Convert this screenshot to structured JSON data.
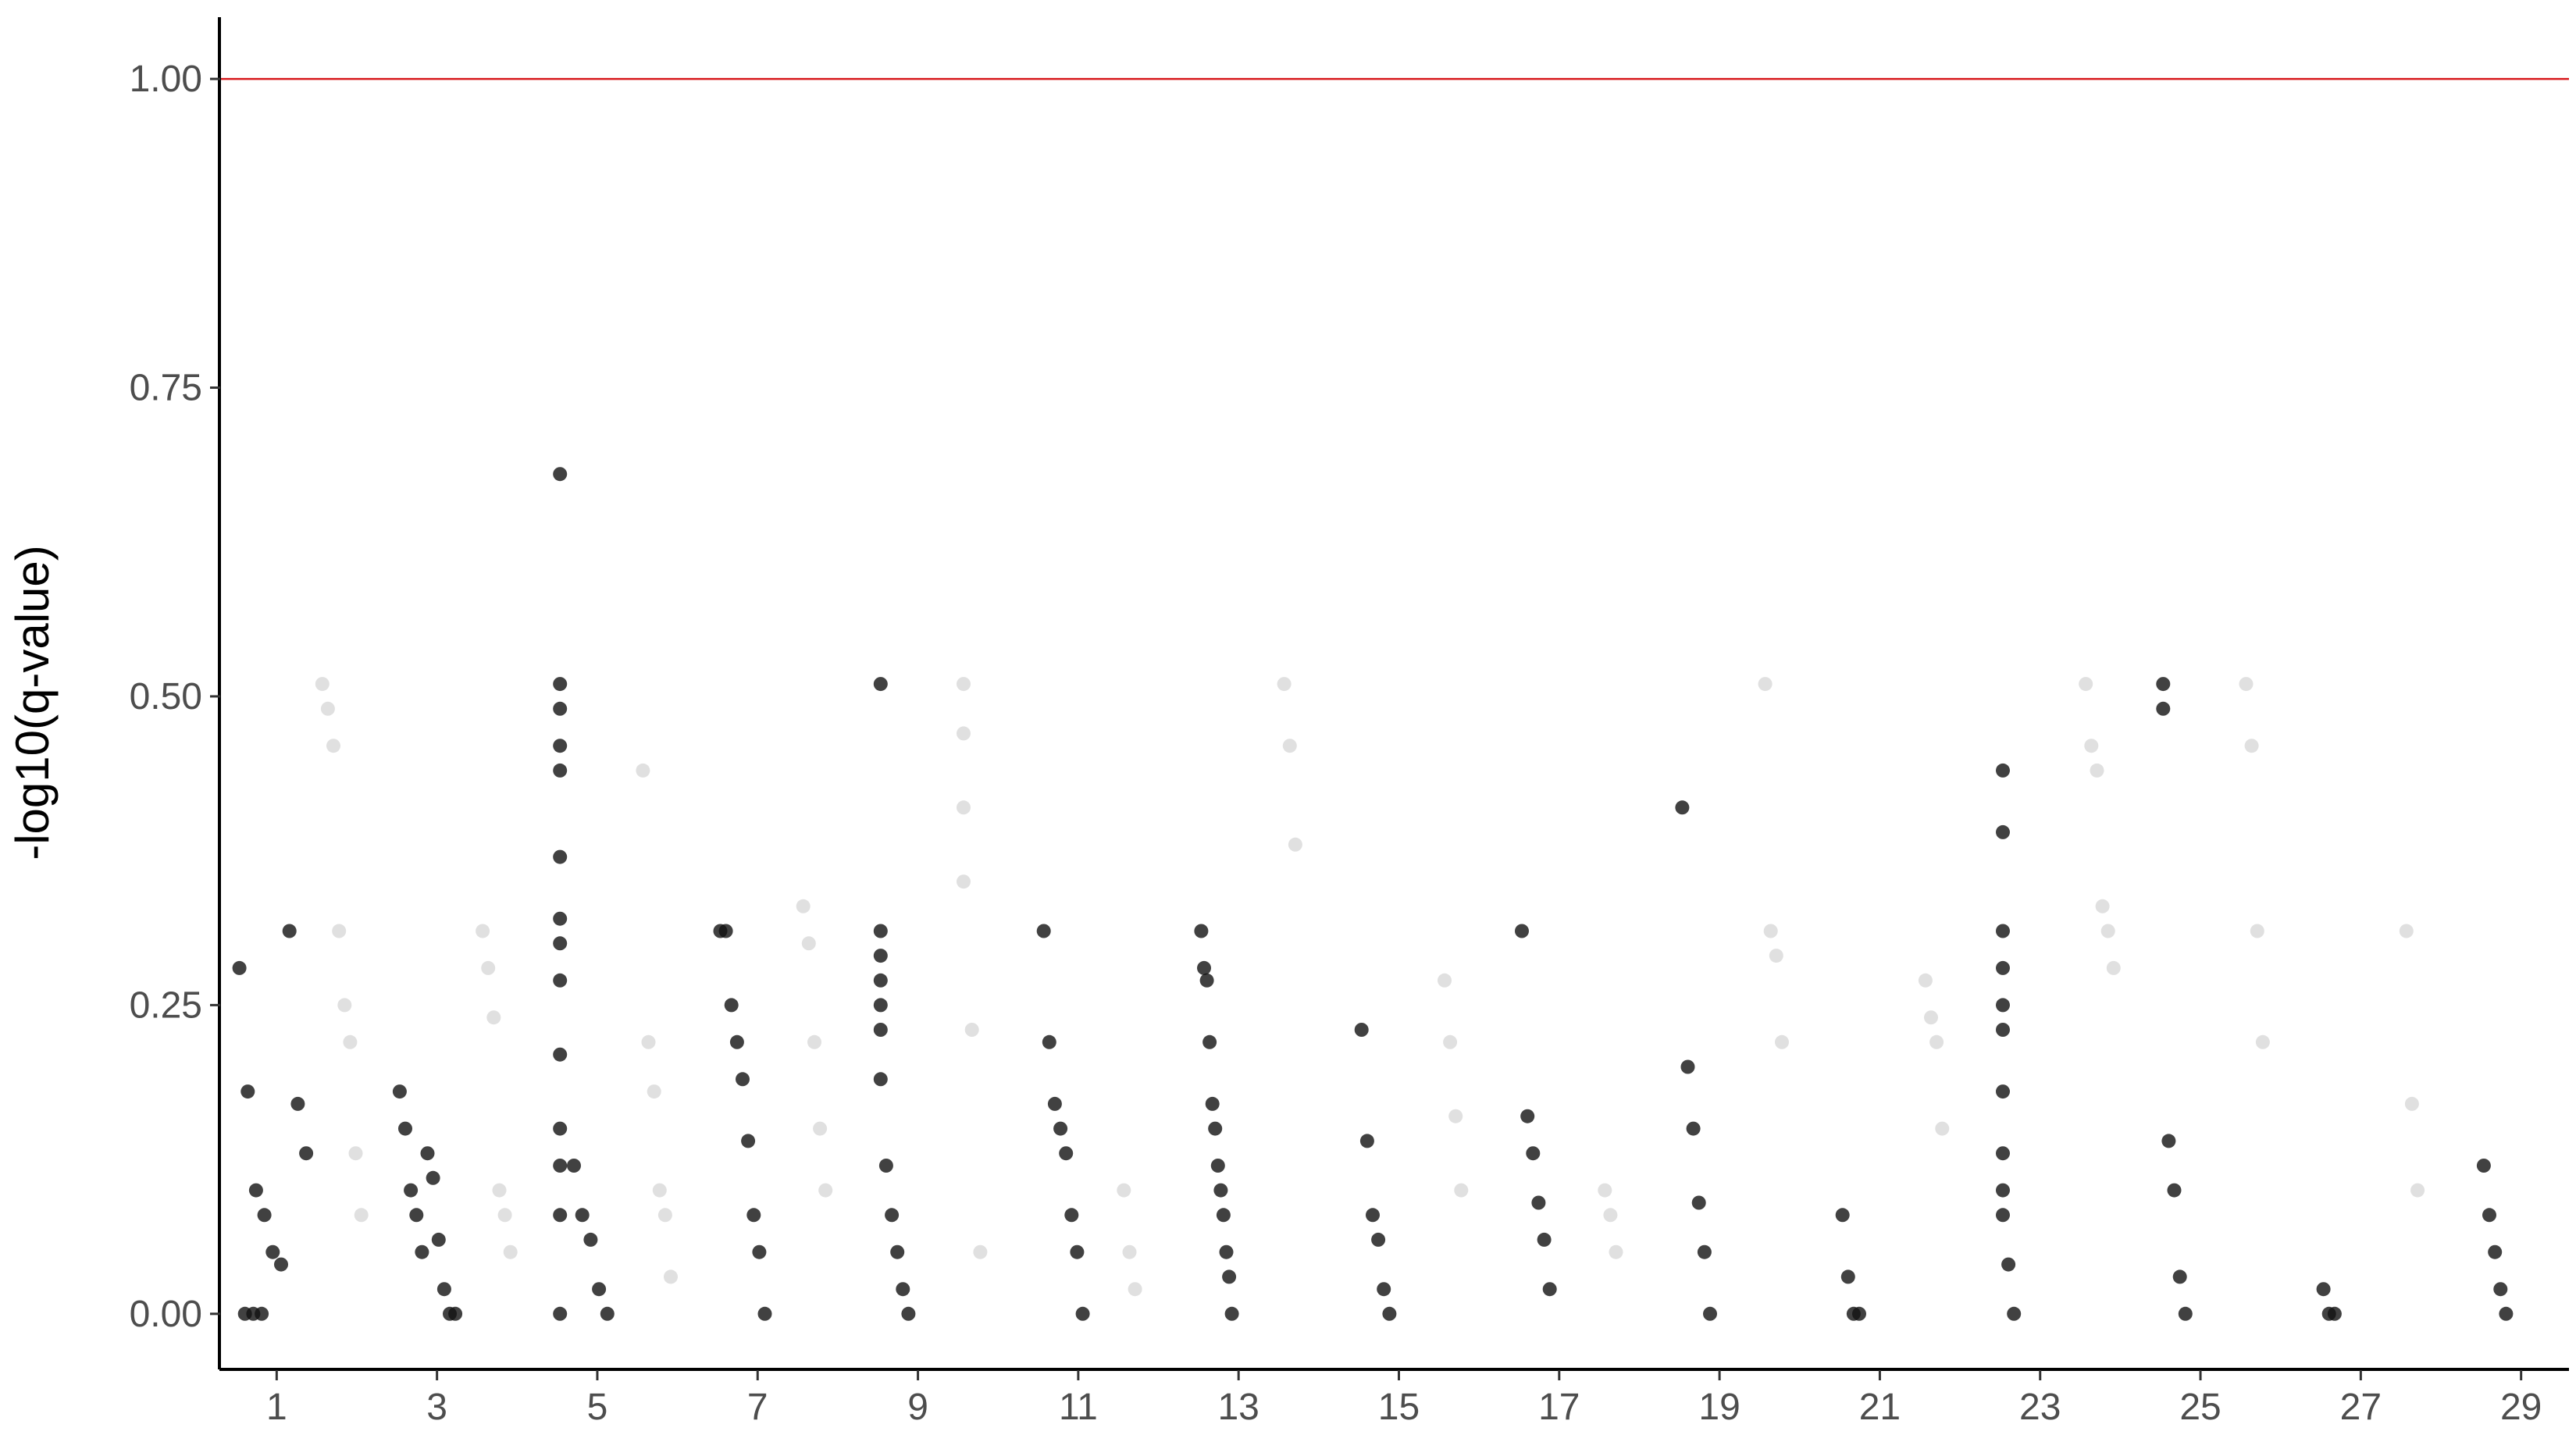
{
  "chart_data": {
    "type": "scatter",
    "title": "",
    "xlabel": "",
    "ylabel": "-log10(q-value)",
    "ylim": [
      -0.045,
      1.05
    ],
    "yticks": [
      "0.00",
      "0.25",
      "0.50",
      "0.75",
      "1.00"
    ],
    "ytick_values": [
      0,
      0.25,
      0.5,
      0.75,
      1.0
    ],
    "xticks": [
      "1",
      "3",
      "5",
      "7",
      "9",
      "11",
      "13",
      "15",
      "17",
      "19",
      "21",
      "23",
      "25",
      "27",
      "29"
    ],
    "grid": false,
    "threshold": {
      "value": 1.0,
      "color": "#d7191c"
    },
    "colors": {
      "odd": "#111111",
      "even": "#e0e0e0",
      "axis": "#000000"
    },
    "series": [
      {
        "chromosome": "1",
        "x": [
          0.1,
          0.4,
          0.7,
          1.0,
          1.3,
          1.6,
          1.9,
          2.2,
          2.5,
          0.3,
          0.6,
          0.9
        ],
        "y": [
          0.28,
          0.18,
          0.1,
          0.08,
          0.05,
          0.04,
          0.31,
          0.17,
          0.13,
          0.0,
          0.0,
          0.0
        ]
      },
      {
        "chromosome": "2",
        "x": [
          0.2,
          0.4,
          0.6,
          0.8,
          1.0,
          1.2,
          1.4,
          1.6
        ],
        "y": [
          0.51,
          0.49,
          0.46,
          0.31,
          0.25,
          0.22,
          0.13,
          0.08
        ]
      },
      {
        "chromosome": "3",
        "x": [
          0.1,
          0.3,
          0.5,
          0.7,
          0.9,
          1.1,
          1.3,
          1.5,
          1.7,
          1.9,
          2.1
        ],
        "y": [
          0.18,
          0.15,
          0.1,
          0.08,
          0.05,
          0.13,
          0.11,
          0.06,
          0.02,
          0.0,
          0.0
        ]
      },
      {
        "chromosome": "4",
        "x": [
          0.2,
          0.4,
          0.6,
          0.8,
          1.0,
          1.2
        ],
        "y": [
          0.31,
          0.28,
          0.24,
          0.1,
          0.08,
          0.05
        ]
      },
      {
        "chromosome": "5",
        "x": [
          0.1,
          0.1,
          0.1,
          0.1,
          0.1,
          0.1,
          0.1,
          0.1,
          0.1,
          0.1,
          0.1,
          0.1,
          0.1,
          0.1,
          0.6,
          0.9,
          1.2,
          1.5,
          1.8
        ],
        "y": [
          0.68,
          0.51,
          0.49,
          0.46,
          0.44,
          0.37,
          0.32,
          0.3,
          0.27,
          0.21,
          0.15,
          0.12,
          0.08,
          0.0,
          0.12,
          0.08,
          0.06,
          0.02,
          0.0
        ]
      },
      {
        "chromosome": "6",
        "x": [
          0.2,
          0.4,
          0.6,
          0.8,
          1.0,
          1.2
        ],
        "y": [
          0.44,
          0.22,
          0.18,
          0.1,
          0.08,
          0.03
        ]
      },
      {
        "chromosome": "7",
        "x": [
          0.1,
          0.3,
          0.5,
          0.7,
          0.9,
          1.1,
          1.3,
          1.5,
          1.7
        ],
        "y": [
          0.31,
          0.31,
          0.25,
          0.22,
          0.19,
          0.14,
          0.08,
          0.05,
          0.0
        ]
      },
      {
        "chromosome": "8",
        "x": [
          0.2,
          0.4,
          0.6,
          0.8,
          1.0
        ],
        "y": [
          0.33,
          0.3,
          0.22,
          0.15,
          0.1
        ]
      },
      {
        "chromosome": "9",
        "x": [
          0.1,
          0.1,
          0.1,
          0.1,
          0.1,
          0.1,
          0.1,
          0.3,
          0.5,
          0.7,
          0.9,
          1.1
        ],
        "y": [
          0.51,
          0.31,
          0.29,
          0.27,
          0.25,
          0.23,
          0.19,
          0.12,
          0.08,
          0.05,
          0.02,
          0.0
        ]
      },
      {
        "chromosome": "10",
        "x": [
          0.2,
          0.2,
          0.2,
          0.2,
          0.5,
          0.8
        ],
        "y": [
          0.51,
          0.47,
          0.41,
          0.35,
          0.23,
          0.05
        ]
      },
      {
        "chromosome": "11",
        "x": [
          0.2,
          0.4,
          0.6,
          0.8,
          1.0,
          1.2,
          1.4,
          1.6
        ],
        "y": [
          0.31,
          0.22,
          0.17,
          0.15,
          0.13,
          0.08,
          0.05,
          0.0
        ]
      },
      {
        "chromosome": "12",
        "x": [
          0.2,
          0.4,
          0.6
        ],
        "y": [
          0.1,
          0.05,
          0.02
        ]
      },
      {
        "chromosome": "13",
        "x": [
          0.1,
          0.2,
          0.3,
          0.4,
          0.5,
          0.6,
          0.7,
          0.8,
          0.9,
          1.0,
          1.1,
          1.2
        ],
        "y": [
          0.31,
          0.28,
          0.27,
          0.22,
          0.17,
          0.15,
          0.12,
          0.1,
          0.08,
          0.05,
          0.03,
          0.0
        ]
      },
      {
        "chromosome": "14",
        "x": [
          0.2,
          0.4,
          0.6
        ],
        "y": [
          0.51,
          0.46,
          0.38
        ]
      },
      {
        "chromosome": "15",
        "x": [
          0.1,
          0.3,
          0.5,
          0.7,
          0.9,
          1.1
        ],
        "y": [
          0.23,
          0.14,
          0.08,
          0.06,
          0.02,
          0.0
        ]
      },
      {
        "chromosome": "16",
        "x": [
          0.2,
          0.4,
          0.6,
          0.8
        ],
        "y": [
          0.27,
          0.22,
          0.16,
          0.1
        ]
      },
      {
        "chromosome": "17",
        "x": [
          0.1,
          0.3,
          0.5,
          0.7,
          0.9,
          1.1
        ],
        "y": [
          0.31,
          0.16,
          0.13,
          0.09,
          0.06,
          0.02
        ]
      },
      {
        "chromosome": "18",
        "x": [
          0.2,
          0.4,
          0.6
        ],
        "y": [
          0.1,
          0.08,
          0.05
        ]
      },
      {
        "chromosome": "19",
        "x": [
          0.1,
          0.3,
          0.5,
          0.7,
          0.9,
          1.1
        ],
        "y": [
          0.41,
          0.2,
          0.15,
          0.09,
          0.05,
          0.0
        ]
      },
      {
        "chromosome": "20",
        "x": [
          0.2,
          0.4,
          0.6,
          0.8
        ],
        "y": [
          0.51,
          0.31,
          0.29,
          0.22
        ]
      },
      {
        "chromosome": "21",
        "x": [
          0.1,
          0.3,
          0.5,
          0.7
        ],
        "y": [
          0.08,
          0.03,
          0.0,
          0.0
        ]
      },
      {
        "chromosome": "22",
        "x": [
          0.2,
          0.4,
          0.6,
          0.8
        ],
        "y": [
          0.27,
          0.24,
          0.22,
          0.15
        ]
      },
      {
        "chromosome": "23",
        "x": [
          0.1,
          0.1,
          0.1,
          0.1,
          0.1,
          0.1,
          0.1,
          0.1,
          0.1,
          0.1,
          0.3,
          0.5
        ],
        "y": [
          0.44,
          0.39,
          0.31,
          0.28,
          0.25,
          0.23,
          0.18,
          0.13,
          0.1,
          0.08,
          0.04,
          0.0
        ]
      },
      {
        "chromosome": "24",
        "x": [
          0.2,
          0.4,
          0.6,
          0.8,
          1.0,
          1.2
        ],
        "y": [
          0.51,
          0.46,
          0.44,
          0.33,
          0.31,
          0.28
        ]
      },
      {
        "chromosome": "25",
        "x": [
          0.1,
          0.1,
          0.3,
          0.5,
          0.7,
          0.9
        ],
        "y": [
          0.51,
          0.49,
          0.14,
          0.1,
          0.03,
          0.0
        ]
      },
      {
        "chromosome": "26",
        "x": [
          0.2,
          0.4,
          0.6,
          0.8
        ],
        "y": [
          0.51,
          0.46,
          0.31,
          0.22
        ]
      },
      {
        "chromosome": "27",
        "x": [
          0.1,
          0.3,
          0.5
        ],
        "y": [
          0.02,
          0.0,
          0.0
        ]
      },
      {
        "chromosome": "28",
        "x": [
          0.2,
          0.4,
          0.6
        ],
        "y": [
          0.31,
          0.17,
          0.1
        ]
      },
      {
        "chromosome": "29",
        "x": [
          0.1,
          0.3,
          0.5,
          0.7,
          0.9
        ],
        "y": [
          0.12,
          0.08,
          0.05,
          0.02,
          0.0
        ]
      }
    ]
  }
}
